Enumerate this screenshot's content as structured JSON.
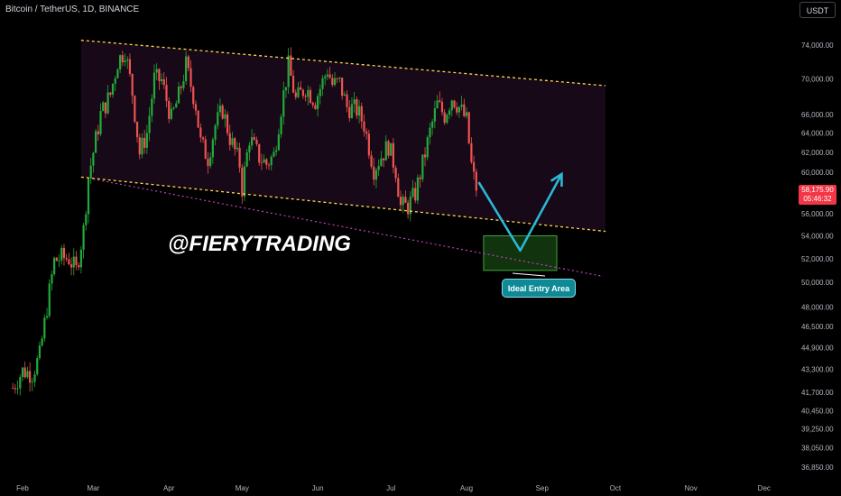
{
  "header": {
    "symbol": "Bitcoin / TetherUS, 1D, BINANCE",
    "currency": "USDT"
  },
  "price_tag": {
    "price": "58,175.90",
    "countdown": "05:46:32"
  },
  "watermark": "@FIERYTRADING",
  "annotation": {
    "entry_label": "Ideal Entry Area"
  },
  "colors": {
    "background": "#000000",
    "up": "#26a69a",
    "up_green": "#22ab3a",
    "down": "#ef5350",
    "channel_line": "#ffd54f",
    "channel_fill": "#1a0a1a",
    "support_line": "#c040c0",
    "arrow": "#2bb7d4",
    "entry_box": "#1f5c1a"
  },
  "chart_data": {
    "type": "candlestick",
    "title": "Bitcoin / TetherUS, 1D, BINANCE",
    "y_axis": {
      "scale": "log",
      "ticks": [
        74000,
        70000,
        66000,
        64000,
        62000,
        60000,
        56000,
        54000,
        52000,
        50000,
        48000,
        46500,
        44900,
        43300,
        41700,
        40450,
        39250,
        38050,
        36850
      ],
      "tick_labels": [
        "74,000.00",
        "70,000.00",
        "66,000.00",
        "64,000.00",
        "62,000.00",
        "60,000.00",
        "56,000.00",
        "54,000.00",
        "52,000.00",
        "50,000.00",
        "48,000.00",
        "46,500.00",
        "44,900.00",
        "43,300.00",
        "41,700.00",
        "40,450.00",
        "39,250.00",
        "38,050.00",
        "36,850.00"
      ]
    },
    "x_axis": {
      "tick_labels": [
        "Feb",
        "Mar",
        "Apr",
        "May",
        "Jun",
        "Jul",
        "Aug",
        "Sep",
        "Oct",
        "Nov",
        "Dec"
      ],
      "tick_dates": [
        "2024-02-01",
        "2024-03-01",
        "2024-04-01",
        "2024-05-01",
        "2024-06-01",
        "2024-07-01",
        "2024-08-01",
        "2024-09-01",
        "2024-10-01",
        "2024-11-01",
        "2024-12-01"
      ]
    },
    "last_price": 58175.9,
    "series_close": [
      [
        "2024-01-28",
        42000
      ],
      [
        "2024-02-01",
        43200
      ],
      [
        "2024-02-05",
        43000
      ],
      [
        "2024-02-08",
        44300
      ],
      [
        "2024-02-11",
        48000
      ],
      [
        "2024-02-14",
        51800
      ],
      [
        "2024-02-17",
        52100
      ],
      [
        "2024-02-20",
        52000
      ],
      [
        "2024-02-23",
        51000
      ],
      [
        "2024-02-26",
        54500
      ],
      [
        "2024-02-28",
        59500
      ],
      [
        "2024-03-01",
        62000
      ],
      [
        "2024-03-04",
        66000
      ],
      [
        "2024-03-08",
        68200
      ],
      [
        "2024-03-11",
        72000
      ],
      [
        "2024-03-14",
        73400
      ],
      [
        "2024-03-17",
        68400
      ],
      [
        "2024-03-20",
        61900
      ],
      [
        "2024-03-23",
        64000
      ],
      [
        "2024-03-26",
        70000
      ],
      [
        "2024-03-29",
        69800
      ],
      [
        "2024-04-02",
        65500
      ],
      [
        "2024-04-05",
        68000
      ],
      [
        "2024-04-08",
        71600
      ],
      [
        "2024-04-12",
        67000
      ],
      [
        "2024-04-14",
        63000
      ],
      [
        "2024-04-17",
        61400
      ],
      [
        "2024-04-20",
        64800
      ],
      [
        "2024-04-23",
        66500
      ],
      [
        "2024-04-26",
        63500
      ],
      [
        "2024-04-30",
        60800
      ],
      [
        "2024-05-01",
        58400
      ],
      [
        "2024-05-04",
        63500
      ],
      [
        "2024-05-08",
        61500
      ],
      [
        "2024-05-11",
        60800
      ],
      [
        "2024-05-14",
        61700
      ],
      [
        "2024-05-17",
        66700
      ],
      [
        "2024-05-20",
        71500
      ],
      [
        "2024-05-23",
        67600
      ],
      [
        "2024-05-27",
        69000
      ],
      [
        "2024-05-31",
        67500
      ],
      [
        "2024-06-05",
        71100
      ],
      [
        "2024-06-07",
        69300
      ],
      [
        "2024-06-10",
        69500
      ],
      [
        "2024-06-13",
        66800
      ],
      [
        "2024-06-17",
        66500
      ],
      [
        "2024-06-20",
        64900
      ],
      [
        "2024-06-24",
        60300
      ],
      [
        "2024-06-27",
        61600
      ],
      [
        "2024-06-30",
        62700
      ],
      [
        "2024-07-03",
        60200
      ],
      [
        "2024-07-05",
        56700
      ],
      [
        "2024-07-08",
        56700
      ],
      [
        "2024-07-11",
        57900
      ],
      [
        "2024-07-14",
        60800
      ],
      [
        "2024-07-17",
        64100
      ],
      [
        "2024-07-20",
        67100
      ],
      [
        "2024-07-23",
        65900
      ],
      [
        "2024-07-26",
        67900
      ],
      [
        "2024-07-29",
        66800
      ],
      [
        "2024-08-01",
        65300
      ],
      [
        "2024-08-03",
        60700
      ],
      [
        "2024-08-05",
        58175.9
      ]
    ],
    "channel_lines": [
      {
        "name": "upper",
        "from": [
          "2024-02-25",
          74600
        ],
        "to": [
          "2024-09-27",
          69200
        ]
      },
      {
        "name": "lower",
        "from": [
          "2024-02-25",
          59500
        ],
        "to": [
          "2024-09-27",
          54400
        ]
      }
    ],
    "support_line": {
      "from": [
        "2024-03-01",
        59300
      ],
      "to": [
        "2024-09-26",
        50500
      ]
    },
    "projection_path": [
      [
        "2024-08-06",
        59000
      ],
      [
        "2024-08-23",
        52700
      ],
      [
        "2024-09-09",
        59800
      ]
    ],
    "entry_zone": {
      "from": "2024-08-08",
      "to": "2024-09-07",
      "price_low": 51000,
      "price_high": 54000
    },
    "grid": false,
    "legend": "none"
  }
}
